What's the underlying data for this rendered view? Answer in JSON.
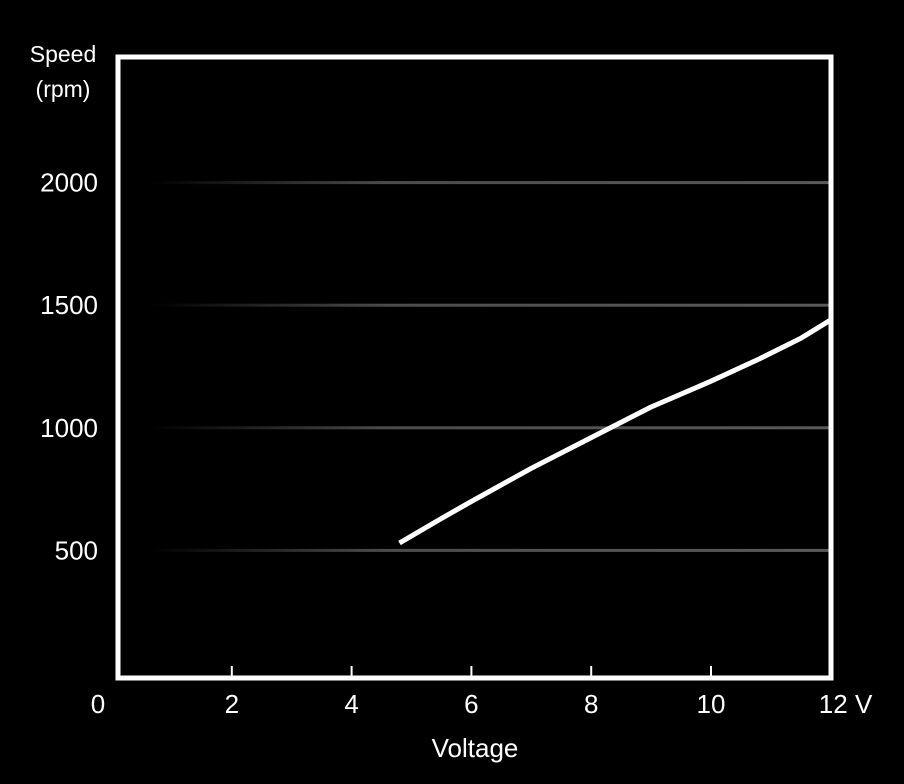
{
  "chart_data": {
    "type": "line",
    "title": "",
    "ylabel_lines": [
      "Speed",
      "(rpm)"
    ],
    "xlabel": "Voltage",
    "x_unit": "V",
    "xlim": [
      0,
      12
    ],
    "ylim": [
      0,
      2500
    ],
    "x_ticks": [
      0,
      2,
      4,
      6,
      8,
      10,
      12
    ],
    "y_ticks": [
      500,
      1000,
      1500,
      2000
    ],
    "grid": "horizontal",
    "series": [
      {
        "color": "#ffffff",
        "x": [
          4.8,
          5.5,
          6.0,
          7.0,
          8.0,
          9.0,
          10.0,
          10.8,
          11.5,
          12.0
        ],
        "y": [
          530,
          630,
          700,
          835,
          960,
          1085,
          1190,
          1280,
          1365,
          1440
        ]
      }
    ]
  },
  "colors": {
    "background": "#000000",
    "axis": "#ffffff",
    "grid": "#5a5a5a",
    "line": "#ffffff"
  }
}
